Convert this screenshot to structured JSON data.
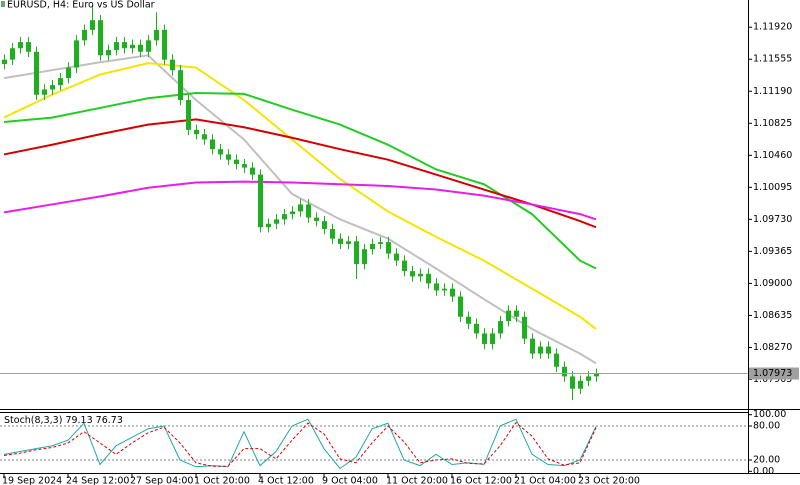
{
  "chart_data": [
    {
      "type": "candlestick",
      "title": "EURUSD, H4:  Euro vs US Dollar",
      "categories": [
        "19 Sep 2024",
        null,
        null,
        null,
        null,
        null,
        null,
        null,
        "24 Sep 12:00",
        null,
        null,
        null,
        null,
        null,
        null,
        null,
        "27 Sep 04:00",
        null,
        null,
        null,
        null,
        null,
        null,
        null,
        "1 Oct 20:00",
        null,
        null,
        null,
        null,
        null,
        null,
        null,
        "4 Oct 12:00",
        null,
        null,
        null,
        null,
        null,
        null,
        null,
        "9 Oct 04:00",
        null,
        null,
        null,
        null,
        null,
        null,
        null,
        "11 Oct 20:00",
        null,
        null,
        null,
        null,
        null,
        null,
        null,
        "16 Oct 12:00",
        null,
        null,
        null,
        null,
        null,
        null,
        null,
        "21 Oct 04:00",
        null,
        null,
        null,
        null,
        null,
        null,
        null,
        "23 Oct 20:00",
        null,
        null
      ],
      "open": [
        1.115,
        1.1155,
        1.1168,
        1.1175,
        1.1164,
        1.1115,
        1.1121,
        1.1126,
        1.1134,
        1.1146,
        1.1177,
        1.1189,
        1.12,
        1.116,
        1.1166,
        1.1175,
        1.1168,
        1.1172,
        1.1164,
        1.1177,
        1.1189,
        1.1155,
        1.1143,
        1.1109,
        1.1075,
        1.107,
        1.1064,
        1.1053,
        1.1047,
        1.1041,
        1.1036,
        1.1032,
        1.1024,
        1.0964,
        1.0968,
        1.0973,
        1.0979,
        1.0982,
        1.099,
        1.0975,
        1.0971,
        1.0962,
        1.0951,
        1.0945,
        1.0948,
        1.0922,
        1.0939,
        1.0945,
        1.0947,
        1.0934,
        1.0926,
        1.0914,
        1.0908,
        1.0911,
        1.09,
        1.0892,
        1.0894,
        1.0885,
        1.0862,
        1.0854,
        1.0843,
        1.0831,
        1.0843,
        1.0857,
        1.0869,
        1.0862,
        1.0837,
        1.082,
        1.0828,
        1.082,
        1.0805,
        1.0794,
        1.078,
        1.0789,
        1.0794
      ],
      "high": [
        1.1161,
        1.1174,
        1.1181,
        1.1181,
        1.117,
        1.1127,
        1.1132,
        1.114,
        1.1152,
        1.1183,
        1.1195,
        1.1217,
        1.1206,
        1.1172,
        1.1181,
        1.1181,
        1.1178,
        1.1178,
        1.1183,
        1.1209,
        1.1195,
        1.1161,
        1.1149,
        1.1115,
        1.1081,
        1.1076,
        1.107,
        1.1059,
        1.1053,
        1.1047,
        1.1042,
        1.1038,
        1.103,
        1.0974,
        1.0979,
        1.0985,
        1.0988,
        1.0996,
        1.0996,
        1.0981,
        1.0977,
        1.0968,
        1.0957,
        1.0954,
        1.0954,
        1.0945,
        1.0951,
        1.0953,
        1.0953,
        1.094,
        1.0932,
        1.092,
        1.0917,
        1.0917,
        1.0906,
        1.09,
        1.09,
        1.0891,
        1.0868,
        1.086,
        1.0849,
        1.0849,
        1.0863,
        1.0875,
        1.0875,
        1.0868,
        1.0843,
        1.0834,
        1.0834,
        1.0826,
        1.0811,
        1.08,
        1.0795,
        1.08,
        1.0803
      ],
      "low": [
        1.1144,
        1.1149,
        1.1162,
        1.1158,
        1.1109,
        1.1109,
        1.1115,
        1.112,
        1.1128,
        1.114,
        1.1171,
        1.1183,
        1.1154,
        1.1154,
        1.116,
        1.1162,
        1.1162,
        1.1158,
        1.1158,
        1.1171,
        1.1149,
        1.1137,
        1.1103,
        1.1069,
        1.1064,
        1.1058,
        1.1047,
        1.1041,
        1.1035,
        1.103,
        1.1026,
        1.1018,
        1.0958,
        1.0958,
        1.0962,
        1.0967,
        1.0973,
        1.0976,
        1.0969,
        1.0965,
        1.0956,
        1.0945,
        1.0939,
        1.0939,
        1.0905,
        1.0916,
        1.0933,
        1.0939,
        1.0928,
        1.092,
        1.0908,
        1.0902,
        1.0902,
        1.0894,
        1.0886,
        1.0886,
        1.0879,
        1.0856,
        1.0848,
        1.0837,
        1.0825,
        1.0825,
        1.0837,
        1.0851,
        1.0856,
        1.0831,
        1.0814,
        1.0814,
        1.0814,
        1.0799,
        1.0788,
        1.0767,
        1.0774,
        1.0783,
        1.0788
      ],
      "close": [
        1.1155,
        1.1168,
        1.1175,
        1.1164,
        1.1115,
        1.1121,
        1.1126,
        1.1134,
        1.1146,
        1.1177,
        1.1189,
        1.12,
        1.116,
        1.1166,
        1.1175,
        1.1168,
        1.1172,
        1.1164,
        1.1177,
        1.1189,
        1.1155,
        1.1143,
        1.1109,
        1.1075,
        1.107,
        1.1064,
        1.1053,
        1.1047,
        1.1041,
        1.1036,
        1.1032,
        1.1024,
        1.0964,
        1.0968,
        1.0973,
        1.0979,
        1.0982,
        1.099,
        1.0975,
        1.0971,
        1.0962,
        1.0951,
        1.0945,
        1.0948,
        1.0922,
        1.0939,
        1.0945,
        1.0947,
        1.0934,
        1.0926,
        1.0914,
        1.0908,
        1.0911,
        1.09,
        1.0892,
        1.0894,
        1.0885,
        1.0862,
        1.0854,
        1.0843,
        1.0831,
        1.0843,
        1.0857,
        1.0869,
        1.0862,
        1.0837,
        1.082,
        1.0828,
        1.082,
        1.0805,
        1.0794,
        1.078,
        1.0789,
        1.0794,
        1.0797
      ],
      "color": "#1fae1f",
      "series": [
        {
          "color": "#c0c0c0",
          "x": [
            0,
            6,
            12,
            18,
            24,
            30,
            36,
            42,
            48,
            54,
            60,
            66,
            72,
            74
          ],
          "values": [
            1.1134,
            1.1143,
            1.1152,
            1.116,
            1.1109,
            1.1064,
            1.1002,
            1.0973,
            1.0951,
            1.0917,
            1.0882,
            1.0848,
            1.082,
            1.0809
          ]
        },
        {
          "color": "#f5e400",
          "x": [
            0,
            6,
            12,
            18,
            24,
            30,
            36,
            42,
            48,
            54,
            60,
            66,
            72,
            74
          ],
          "values": [
            1.1089,
            1.1115,
            1.1138,
            1.1151,
            1.1146,
            1.1109,
            1.1064,
            1.1019,
            1.0982,
            1.0953,
            1.0926,
            1.0894,
            1.0862,
            1.0848
          ]
        },
        {
          "color": "#22cc22",
          "x": [
            0,
            6,
            12,
            18,
            24,
            30,
            36,
            42,
            48,
            54,
            60,
            66,
            72,
            74
          ],
          "values": [
            1.1084,
            1.1089,
            1.11,
            1.1111,
            1.1117,
            1.1116,
            1.1098,
            1.1081,
            1.1058,
            1.103,
            1.1013,
            1.0979,
            1.0926,
            1.0917
          ]
        },
        {
          "color": "#d40000",
          "x": [
            0,
            6,
            12,
            18,
            24,
            30,
            36,
            42,
            48,
            54,
            60,
            66,
            72,
            74
          ],
          "values": [
            1.1047,
            1.1058,
            1.107,
            1.1081,
            1.1087,
            1.1078,
            1.1066,
            1.1053,
            1.1041,
            1.1024,
            1.1007,
            1.099,
            1.0971,
            1.0964
          ]
        },
        {
          "color": "#e61ee6",
          "x": [
            0,
            6,
            12,
            18,
            24,
            30,
            36,
            42,
            48,
            54,
            60,
            66,
            72,
            74
          ],
          "values": [
            1.0981,
            1.099,
            1.0999,
            1.1009,
            1.1015,
            1.1016,
            1.1015,
            1.1013,
            1.1011,
            1.1007,
            1.1,
            1.099,
            1.0979,
            1.0973
          ]
        }
      ],
      "ylim": [
        1.0758,
        1.1223
      ],
      "yticks": [
        {
          "value": 1.1192,
          "label": "1.11920"
        },
        {
          "value": 1.11555,
          "label": "1.11555"
        },
        {
          "value": 1.1119,
          "label": "1.11190"
        },
        {
          "value": 1.10825,
          "label": "1.10825"
        },
        {
          "value": 1.1046,
          "label": "1.10460"
        },
        {
          "value": 1.10095,
          "label": "1.10095"
        },
        {
          "value": 1.0973,
          "label": "1.09730"
        },
        {
          "value": 1.09365,
          "label": "1.09365"
        },
        {
          "value": 1.09,
          "label": "1.09000"
        },
        {
          "value": 1.08635,
          "label": "1.08635"
        },
        {
          "value": 1.0827,
          "label": "1.08270"
        },
        {
          "value": 1.07905,
          "label": "1.07905"
        }
      ],
      "bid": {
        "value": 1.07973,
        "label": "1.07973"
      }
    },
    {
      "type": "line",
      "title": "Stoch(8,3,3)",
      "x": [
        0,
        2,
        4,
        6,
        8,
        10,
        12,
        14,
        16,
        18,
        20,
        22,
        24,
        26,
        28,
        30,
        32,
        34,
        36,
        38,
        40,
        42,
        44,
        46,
        48,
        50,
        52,
        54,
        56,
        58,
        60,
        62,
        64,
        66,
        68,
        70,
        72,
        74
      ],
      "series": [
        {
          "color": "#20a8a8",
          "dash": false,
          "values": [
            30,
            35,
            40,
            45,
            55,
            85,
            12,
            45,
            60,
            75,
            80,
            20,
            8,
            10,
            8,
            70,
            10,
            35,
            80,
            92,
            40,
            5,
            25,
            75,
            85,
            20,
            10,
            30,
            12,
            15,
            12,
            80,
            92,
            30,
            12,
            10,
            20,
            79.13
          ]
        },
        {
          "color": "#e00000",
          "dash": true,
          "values": [
            28,
            32,
            38,
            42,
            50,
            70,
            50,
            30,
            50,
            68,
            78,
            50,
            15,
            9,
            9,
            40,
            40,
            22,
            55,
            85,
            66,
            22,
            15,
            50,
            80,
            52,
            15,
            20,
            22,
            14,
            13,
            45,
            86,
            62,
            22,
            11,
            15,
            76.73
          ]
        }
      ],
      "ylim": [
        -3,
        103
      ],
      "yticks": [
        {
          "value": 100,
          "label": "100.00"
        },
        {
          "value": 80,
          "label": "80.00"
        },
        {
          "value": 20,
          "label": "20.00"
        },
        {
          "value": 0,
          "label": "0.00"
        }
      ],
      "levels": [
        80,
        20
      ]
    }
  ]
}
